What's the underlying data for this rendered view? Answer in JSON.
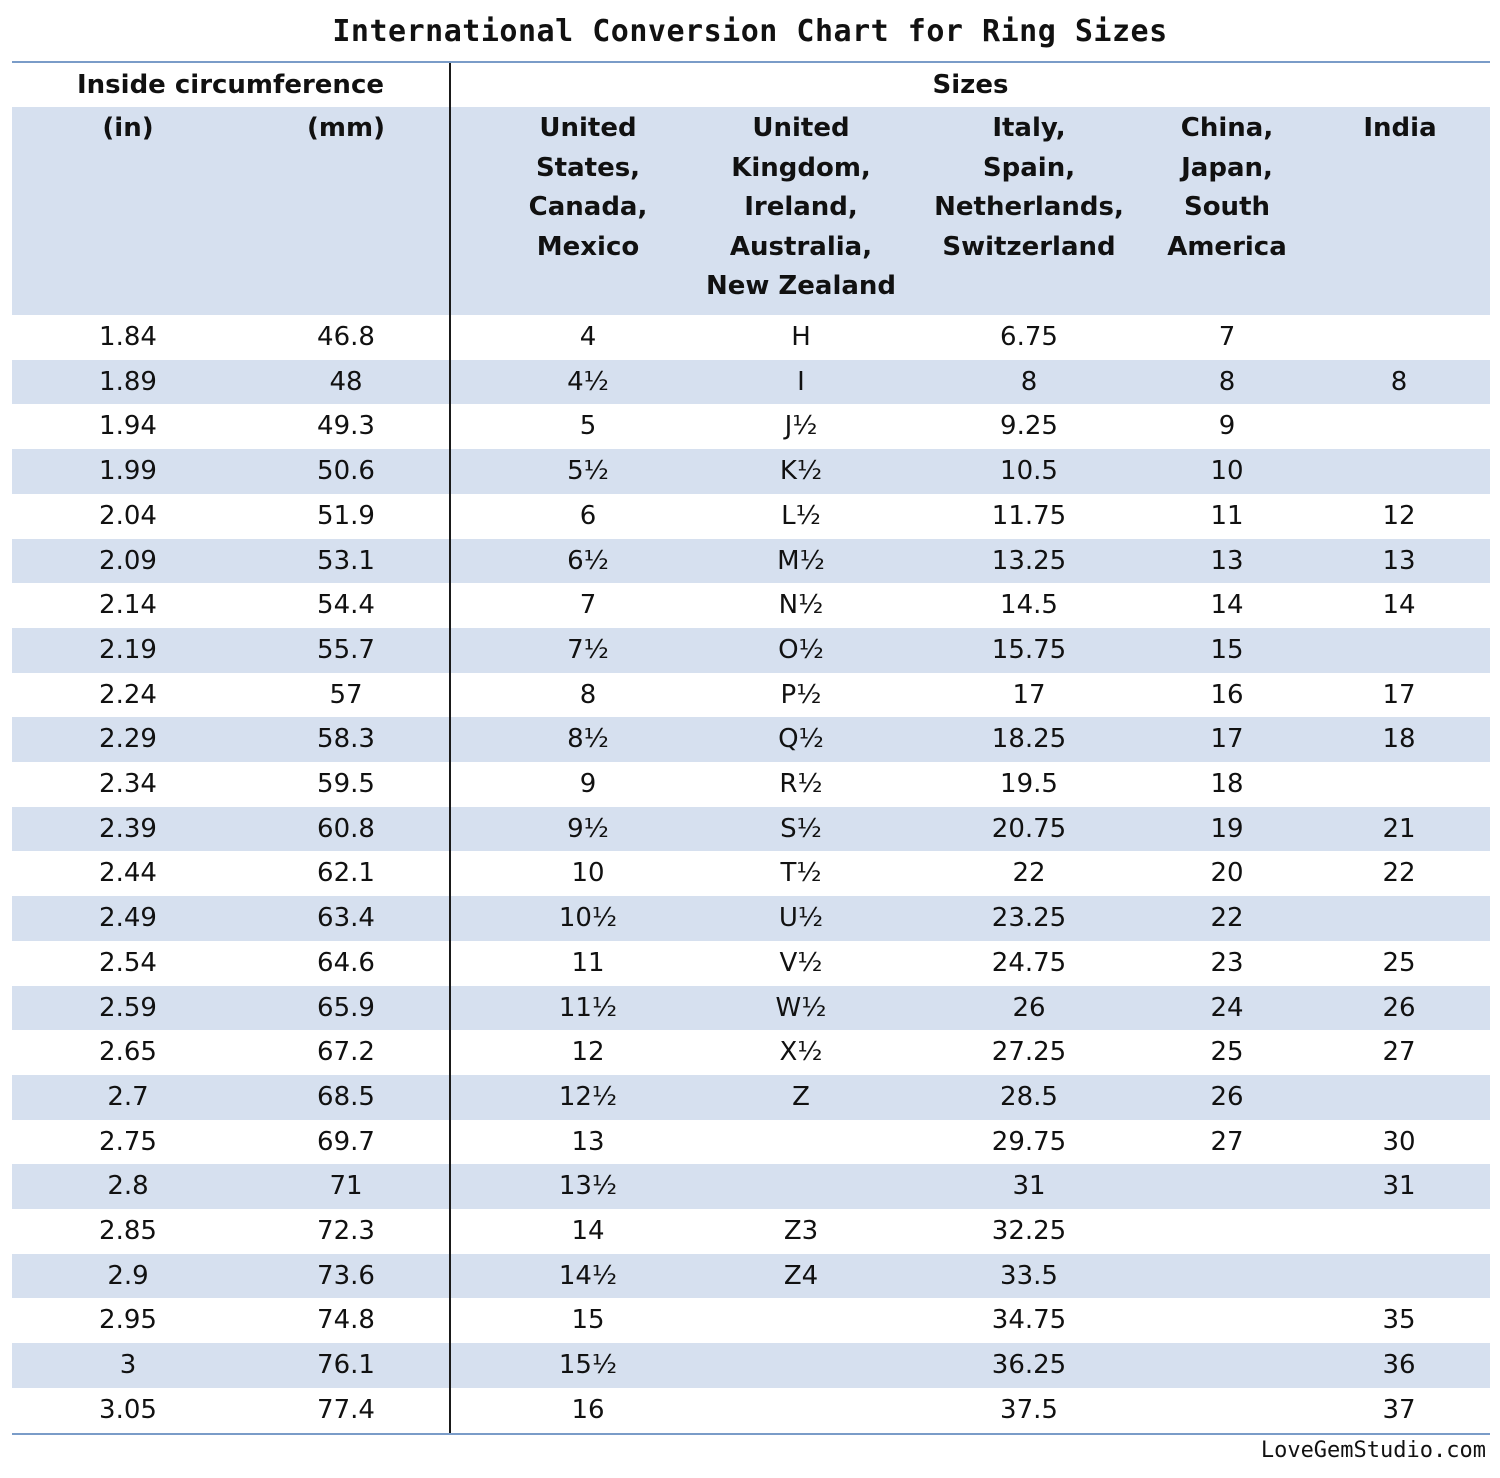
{
  "title": "International Conversion Chart for Ring Sizes",
  "group_headers": {
    "left": "Inside circumference",
    "right": "Sizes"
  },
  "columns": [
    "(in)",
    "(mm)",
    "United\nStates,\nCanada,\nMexico",
    "United\nKingdom,\nIreland,\nAustralia,\nNew Zealand",
    "Italy,\nSpain,\nNetherlands,\nSwitzerland",
    "China,\nJapan,\nSouth\nAmerica",
    "India"
  ],
  "rows": [
    [
      "1.84",
      "46.8",
      "4",
      "H",
      "6.75",
      "7",
      ""
    ],
    [
      "1.89",
      "48",
      "4½",
      "I",
      "8",
      "8",
      "8"
    ],
    [
      "1.94",
      "49.3",
      "5",
      "J½",
      "9.25",
      "9",
      ""
    ],
    [
      "1.99",
      "50.6",
      "5½",
      "K½",
      "10.5",
      "10",
      ""
    ],
    [
      "2.04",
      "51.9",
      "6",
      "L½",
      "11.75",
      "11",
      "12"
    ],
    [
      "2.09",
      "53.1",
      "6½",
      "M½",
      "13.25",
      "13",
      "13"
    ],
    [
      "2.14",
      "54.4",
      "7",
      "N½",
      "14.5",
      "14",
      "14"
    ],
    [
      "2.19",
      "55.7",
      "7½",
      "O½",
      "15.75",
      "15",
      ""
    ],
    [
      "2.24",
      "57",
      "8",
      "P½",
      "17",
      "16",
      "17"
    ],
    [
      "2.29",
      "58.3",
      "8½",
      "Q½",
      "18.25",
      "17",
      "18"
    ],
    [
      "2.34",
      "59.5",
      "9",
      "R½",
      "19.5",
      "18",
      ""
    ],
    [
      "2.39",
      "60.8",
      "9½",
      "S½",
      "20.75",
      "19",
      "21"
    ],
    [
      "2.44",
      "62.1",
      "10",
      "T½",
      "22",
      "20",
      "22"
    ],
    [
      "2.49",
      "63.4",
      "10½",
      "U½",
      "23.25",
      "22",
      ""
    ],
    [
      "2.54",
      "64.6",
      "11",
      "V½",
      "24.75",
      "23",
      "25"
    ],
    [
      "2.59",
      "65.9",
      "11½",
      "W½",
      "26",
      "24",
      "26"
    ],
    [
      "2.65",
      "67.2",
      "12",
      "X½",
      "27.25",
      "25",
      "27"
    ],
    [
      "2.7",
      "68.5",
      "12½",
      "Z",
      "28.5",
      "26",
      ""
    ],
    [
      "2.75",
      "69.7",
      "13",
      "",
      "29.75",
      "27",
      "30"
    ],
    [
      "2.8",
      "71",
      "13½",
      "",
      "31",
      "",
      "31"
    ],
    [
      "2.85",
      "72.3",
      "14",
      "Z3",
      "32.25",
      "",
      ""
    ],
    [
      "2.9",
      "73.6",
      "14½",
      "Z4",
      "33.5",
      "",
      ""
    ],
    [
      "2.95",
      "74.8",
      "15",
      "",
      "34.75",
      "",
      "35"
    ],
    [
      "3",
      "76.1",
      "15½",
      "",
      "36.25",
      "",
      "36"
    ],
    [
      "3.05",
      "77.4",
      "16",
      "",
      "37.5",
      "",
      "37"
    ]
  ],
  "credit": "LoveGemStudio.com",
  "colors": {
    "band": "#d6e0ef",
    "rule": "#7a9cc8",
    "divider": "#1a1a1a"
  }
}
